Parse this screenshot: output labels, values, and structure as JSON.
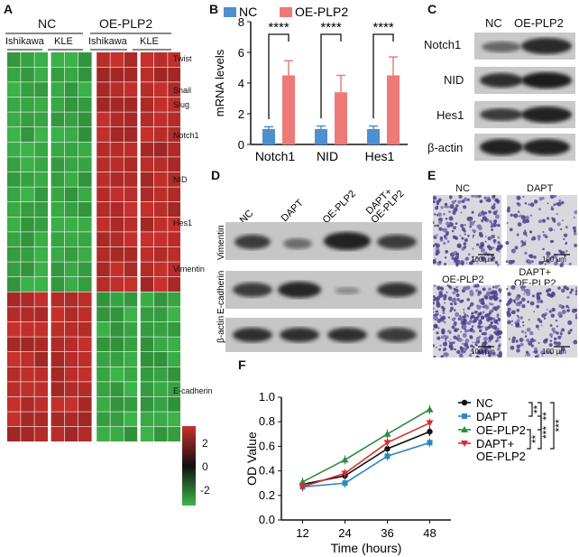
{
  "panels": {
    "a": "A",
    "b": "B",
    "c": "C",
    "d": "D",
    "e": "E",
    "f": "F"
  },
  "panel_a": {
    "group_nc": "NC",
    "group_oe": "OE-PLP2",
    "sub_ishikawa": "Ishikawa",
    "sub_kle": "KLE",
    "sub_ishikawa2": "Ishikawa",
    "sub_kle2": "KLE",
    "genes": [
      "Twist",
      "Snail",
      "Slug",
      "Notch1",
      "NID",
      "Hes1",
      "Vimentin",
      "E-cadherin"
    ],
    "colorbar_ticks": [
      "2",
      "0",
      "-2"
    ],
    "colors": {
      "high": "#c8312d",
      "mid": "#111111",
      "low": "#3db54a"
    }
  },
  "chart_data": [
    {
      "type": "bar",
      "title": "",
      "ylabel": "mRNA levels",
      "categories": [
        "Notch1",
        "NID",
        "Hes1"
      ],
      "ylim": [
        0,
        8
      ],
      "yticks": [
        "0",
        "2",
        "4",
        "6",
        "8"
      ],
      "series": [
        {
          "name": "NC",
          "color": "#4e8fd1",
          "values": [
            1.0,
            1.0,
            1.0
          ],
          "errors": [
            0.15,
            0.2,
            0.2
          ]
        },
        {
          "name": "OE-PLP2",
          "color": "#ee7a77",
          "values": [
            4.5,
            3.4,
            4.5
          ],
          "errors": [
            0.95,
            1.1,
            1.2
          ]
        }
      ],
      "significance": [
        "****",
        "****",
        "****"
      ]
    },
    {
      "type": "line",
      "title": "",
      "xlabel": "Time (hours)",
      "ylabel": "OD Value",
      "x": [
        12,
        24,
        36,
        48
      ],
      "xticks": [
        "12",
        "24",
        "36",
        "48"
      ],
      "ylim": [
        0.0,
        1.0
      ],
      "yticks": [
        "0.0",
        "0.2",
        "0.4",
        "0.6",
        "0.8",
        "1.0"
      ],
      "series": [
        {
          "name": "NC",
          "color": "#111111",
          "marker": "circle",
          "values": [
            0.29,
            0.36,
            0.58,
            0.72
          ]
        },
        {
          "name": "DAPT",
          "color": "#2e86c1",
          "marker": "square",
          "values": [
            0.27,
            0.3,
            0.52,
            0.63
          ]
        },
        {
          "name": "OE-PLP2",
          "color": "#2e8b3f",
          "marker": "triangle",
          "values": [
            0.31,
            0.49,
            0.7,
            0.9
          ]
        },
        {
          "name": "DAPT+\nOE-PLP2",
          "color": "#d32f2f",
          "marker": "tri-down",
          "values": [
            0.27,
            0.38,
            0.63,
            0.79
          ]
        }
      ],
      "brackets": [
        "**",
        "**",
        "***",
        "**",
        "***"
      ]
    }
  ],
  "panel_c": {
    "lanes": [
      "NC",
      "OE-PLP2"
    ],
    "rows": [
      "Notch1",
      "NID",
      "Hes1",
      "β-actin"
    ]
  },
  "panel_d": {
    "lanes": [
      "NC",
      "DAPT",
      "OE-PLP2",
      "DAPT+\nOE-PLP2"
    ],
    "rows": [
      "Vimentin",
      "E-cadherin",
      "β-actin"
    ]
  },
  "panel_e": {
    "labels": [
      "NC",
      "DAPT",
      "OE-PLP2",
      "DAPT+\nOE-PLP2"
    ],
    "scale": "100 μm"
  }
}
